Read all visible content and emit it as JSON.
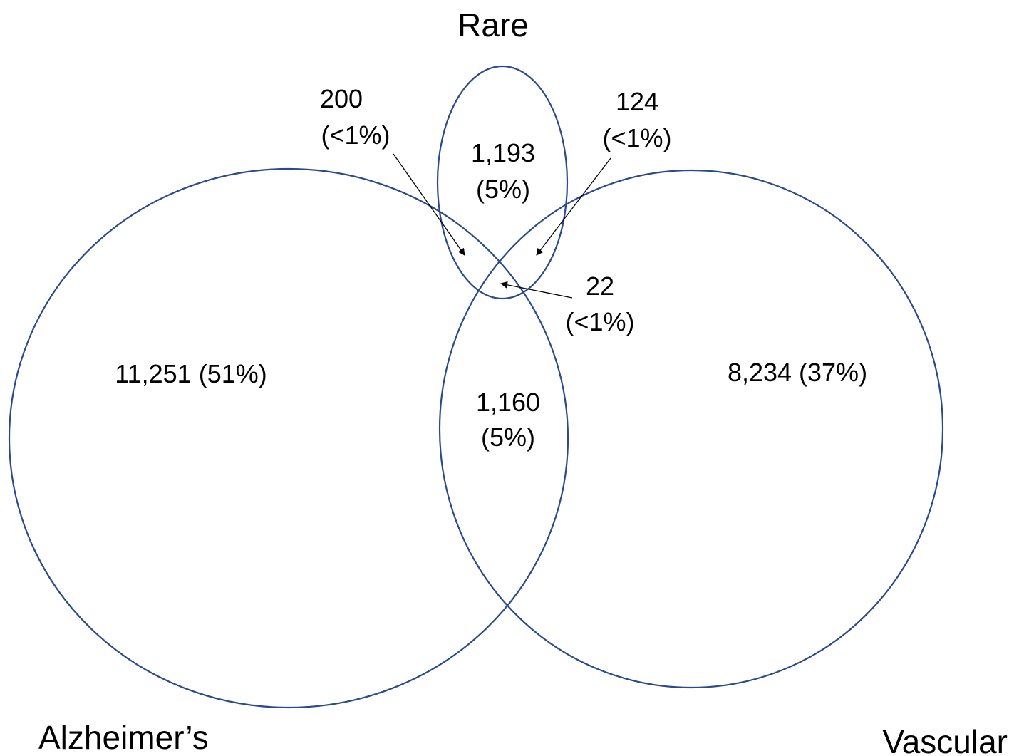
{
  "colors": {
    "outline": "#2a4a8c",
    "text": "#000000",
    "background": "#ffffff"
  },
  "sets": {
    "rare": "Rare",
    "alzheimers": "Alzheimer’s",
    "vascular": "Vascular"
  },
  "regions": {
    "alzheimers_only": "11,251 (51%)",
    "vascular_only": "8,234 (37%)",
    "rare_only": {
      "count": "1,193",
      "percent": "(5%)"
    },
    "alzheimers_vascular": {
      "count": "1,160",
      "percent": "(5%)"
    },
    "rare_alzheimers": {
      "count": "200",
      "percent": "(<1%)"
    },
    "rare_vascular": {
      "count": "124",
      "percent": "(<1%)"
    },
    "all_three": {
      "count": "22",
      "percent": "(<1%)"
    }
  }
}
